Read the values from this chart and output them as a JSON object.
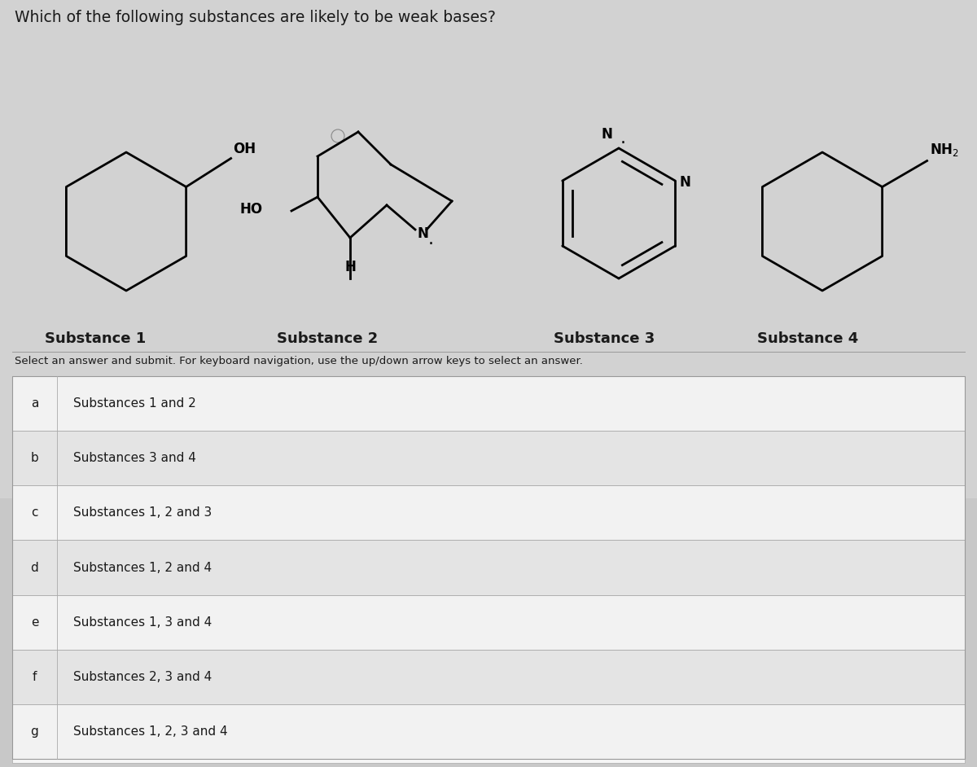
{
  "title": "Which of the following substances are likely to be weak bases?",
  "instruction": "Select an answer and submit. For keyboard navigation, use the up/down arrow keys to select an answer.",
  "substance_labels": [
    "Substance 1",
    "Substance 2",
    "Substance 3",
    "Substance 4"
  ],
  "options": [
    {
      "label": "a",
      "text": "Substances 1 and 2"
    },
    {
      "label": "b",
      "text": "Substances 3 and 4"
    },
    {
      "label": "c",
      "text": "Substances 1, 2 and 3"
    },
    {
      "label": "d",
      "text": "Substances 1, 2 and 4"
    },
    {
      "label": "e",
      "text": "Substances 1, 3 and 4"
    },
    {
      "label": "f",
      "text": "Substances 2, 3 and 4"
    },
    {
      "label": "g",
      "text": "Substances 1, 2, 3 and 4"
    }
  ],
  "bg_color": "#c8c8c8",
  "top_panel_color": "#d0d0d0",
  "row_color_light": "#f0f0f0",
  "row_color_dark": "#e0e0e0",
  "white": "#ffffff",
  "border_color": "#aaaaaa",
  "text_color": "#1a1a1a",
  "title_fontsize": 13.5,
  "label_fontsize": 11,
  "option_fontsize": 11,
  "substance_fontsize": 13,
  "mol_lw": 2.0
}
